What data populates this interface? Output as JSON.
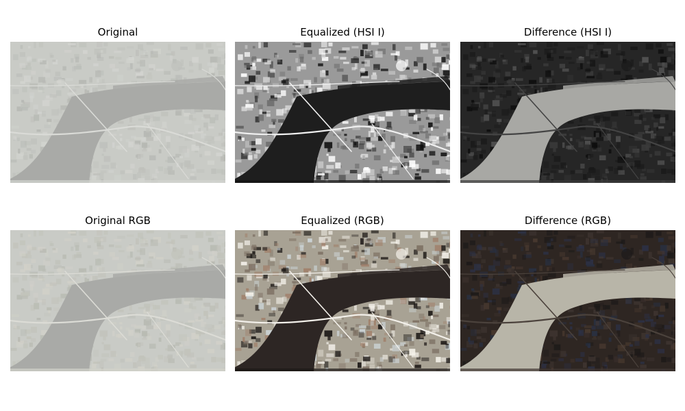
{
  "figure": {
    "panels": [
      {
        "id": "orig",
        "title": "Original",
        "style": "washed-gray"
      },
      {
        "id": "eq-hsi",
        "title": "Equalized (HSI I)",
        "style": "high-contrast-gray"
      },
      {
        "id": "diff-hsi",
        "title": "Difference (HSI I)",
        "style": "dark-gray"
      },
      {
        "id": "orig-rgb",
        "title": "Original RGB",
        "style": "washed-color"
      },
      {
        "id": "eq-rgb",
        "title": "Equalized (RGB)",
        "style": "high-contrast-color"
      },
      {
        "id": "diff-rgb",
        "title": "Difference (RGB)",
        "style": "dark-color"
      }
    ]
  },
  "colors": {
    "washed_land": "#c9cbc6",
    "washed_river": "#a9aaa7",
    "gray_land": "#9a9a9a",
    "gray_river": "#1e1e1e",
    "dark_land": "#262626",
    "dark_river": "#a8a8a4",
    "color_land": "#a8a294",
    "color_river": "#2d2624",
    "diffc_land": "#2e2622",
    "diffc_river": "#b8b5a8"
  }
}
